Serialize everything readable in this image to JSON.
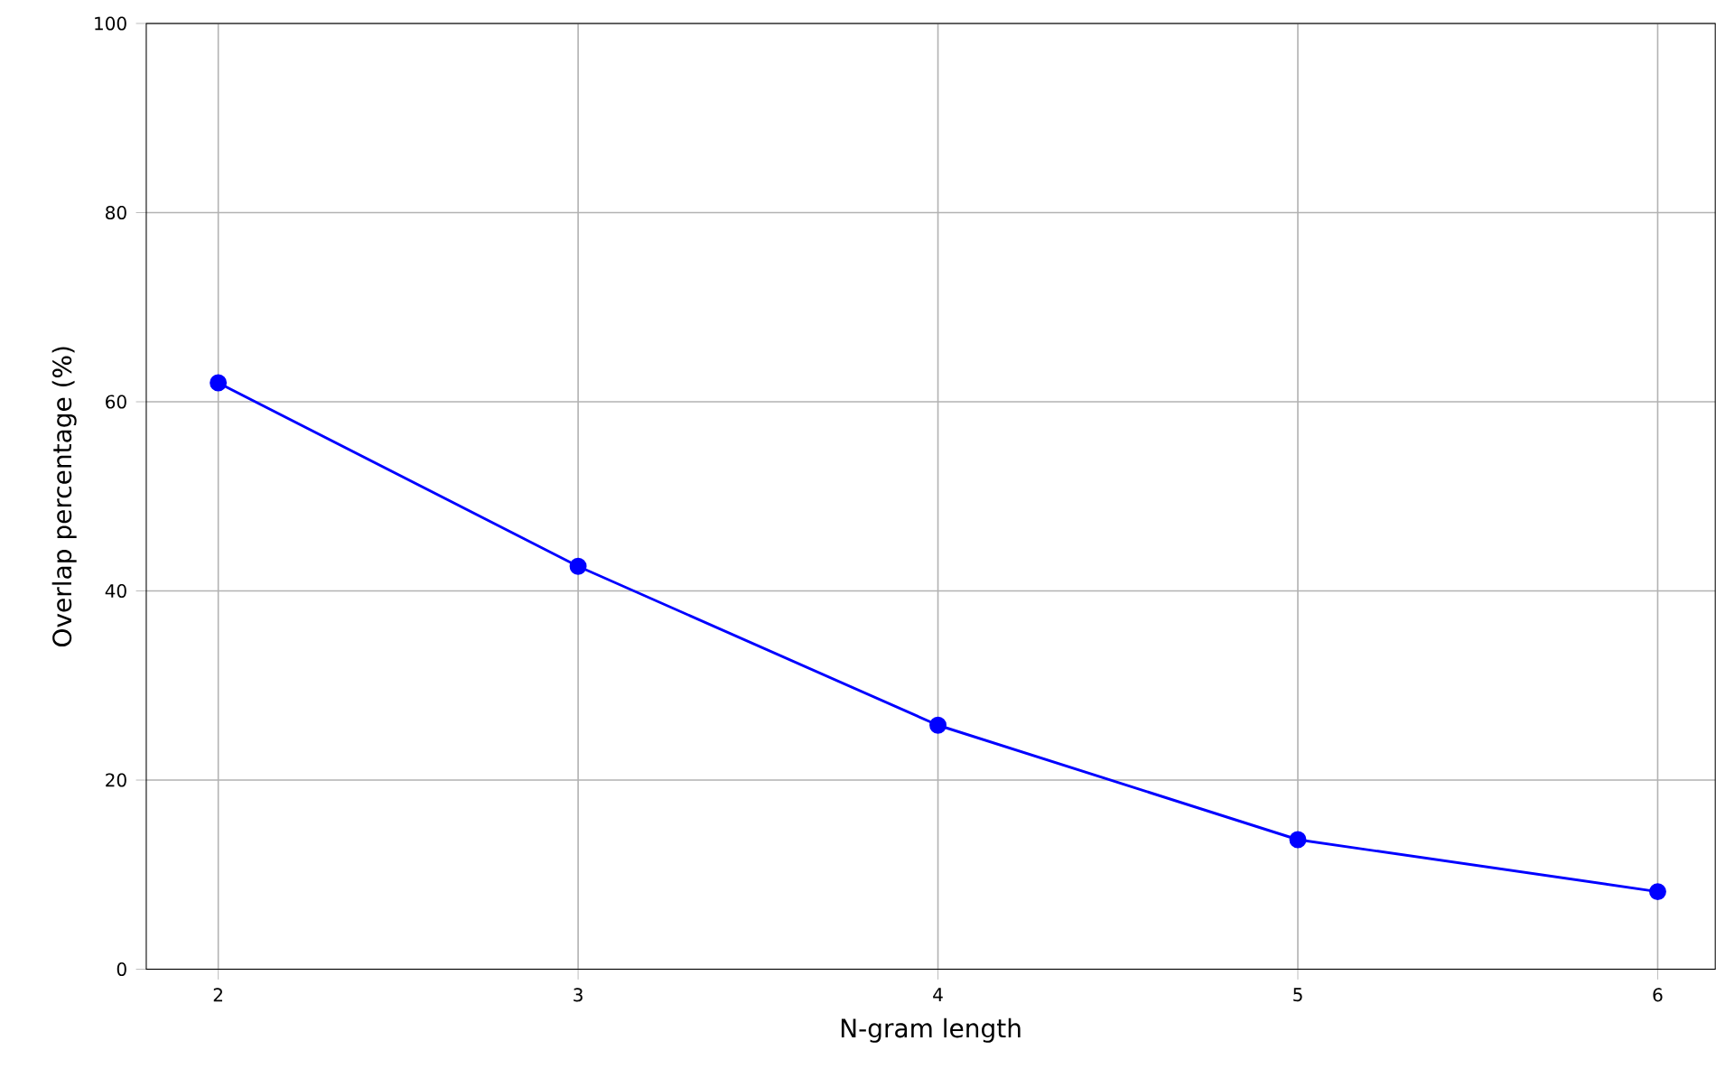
{
  "chart_data": {
    "type": "line",
    "xlabel": "N-gram length",
    "ylabel": "Overlap percentage (%)",
    "x": [
      2,
      3,
      4,
      5,
      6
    ],
    "series": [
      {
        "color": "#0000ff",
        "values": [
          62.0,
          42.6,
          25.8,
          13.7,
          8.2
        ]
      }
    ],
    "xlim": [
      1.8,
      6.16
    ],
    "ylim": [
      0,
      100
    ],
    "xticks": [
      2,
      3,
      4,
      5,
      6
    ],
    "yticks": [
      0,
      20,
      40,
      60,
      80,
      100
    ],
    "grid": true,
    "marker": "circle",
    "line_style": "solid"
  }
}
